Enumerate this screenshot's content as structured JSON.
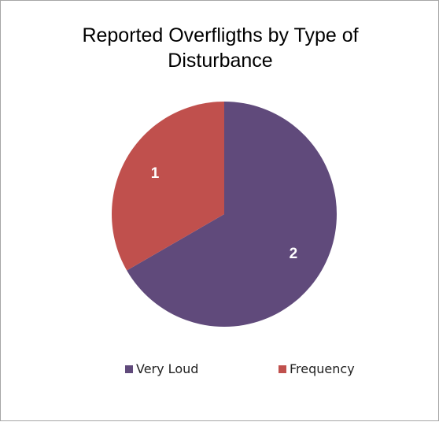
{
  "chart_data": {
    "type": "pie",
    "title_lines": [
      "Reported Overfligths by Type of",
      "Disturbance"
    ],
    "categories": [
      "Very Loud",
      "Frequency"
    ],
    "values": [
      2,
      1
    ],
    "data_labels": [
      "2",
      "1"
    ],
    "colors": [
      "#604a7b",
      "#c0504d"
    ],
    "legend_position": "bottom"
  }
}
